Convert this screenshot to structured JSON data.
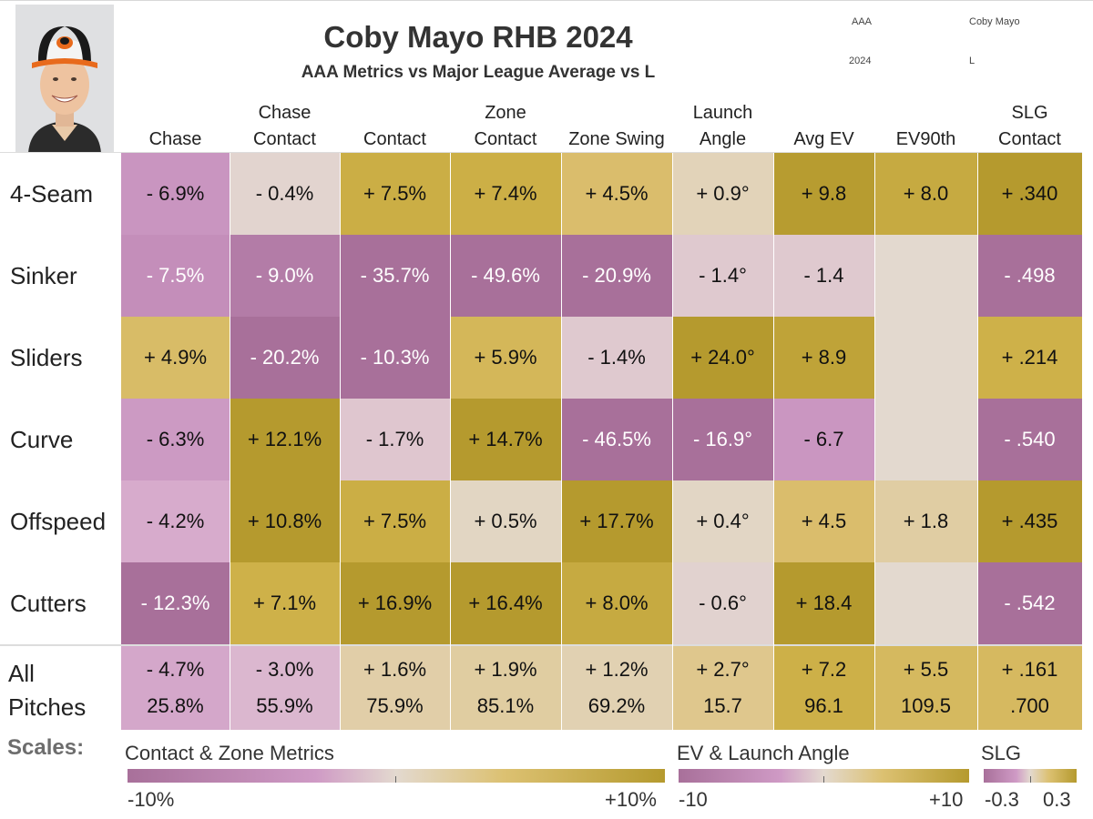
{
  "header": {
    "title": "Coby Mayo RHB 2024",
    "subtitle": "AAA Metrics vs Major League Average vs L",
    "meta": {
      "level": "AAA",
      "player": "Coby Mayo",
      "year": "2024",
      "hand": "L"
    }
  },
  "chart_data": {
    "type": "table",
    "title": "Coby Mayo RHB 2024",
    "subtitle": "AAA Metrics vs Major League Average vs L",
    "columns": [
      {
        "lines": [
          "Chase"
        ],
        "scale": "pct"
      },
      {
        "lines": [
          "Chase",
          "Contact"
        ],
        "scale": "pct"
      },
      {
        "lines": [
          "Contact"
        ],
        "scale": "pct"
      },
      {
        "lines": [
          "Zone",
          "Contact"
        ],
        "scale": "pct"
      },
      {
        "lines": [
          "Zone Swing"
        ],
        "scale": "pct"
      },
      {
        "lines": [
          "Launch",
          "Angle"
        ],
        "scale": "ev"
      },
      {
        "lines": [
          "Avg EV"
        ],
        "scale": "ev"
      },
      {
        "lines": [
          "EV90th"
        ],
        "scale": "ev"
      },
      {
        "lines": [
          "SLG",
          "Contact"
        ],
        "scale": "slg"
      }
    ],
    "rows": [
      {
        "label": "4-Seam",
        "cells": [
          {
            "text": "- 6.9%",
            "v": -6.9
          },
          {
            "text": "- 0.4%",
            "v": -0.4
          },
          {
            "text": "+ 7.5%",
            "v": 7.5
          },
          {
            "text": "+ 7.4%",
            "v": 7.4
          },
          {
            "text": "+ 4.5%",
            "v": 4.5
          },
          {
            "text": "+ 0.9°",
            "v": 0.9
          },
          {
            "text": "+ 9.8",
            "v": 9.8
          },
          {
            "text": "+ 8.0",
            "v": 8.0
          },
          {
            "text": "+ .340",
            "v": 0.34
          }
        ]
      },
      {
        "label": "Sinker",
        "cells": [
          {
            "text": "- 7.5%",
            "v": -7.5
          },
          {
            "text": "- 9.0%",
            "v": -9.0
          },
          {
            "text": "- 35.7%",
            "v": -35.7
          },
          {
            "text": "- 49.6%",
            "v": -49.6
          },
          {
            "text": "- 20.9%",
            "v": -20.9
          },
          {
            "text": "- 1.4°",
            "v": -1.4
          },
          {
            "text": "- 1.4",
            "v": -1.4
          },
          {
            "text": "",
            "v": null
          },
          {
            "text": "- .498",
            "v": -0.498
          }
        ]
      },
      {
        "label": "Sliders",
        "cells": [
          {
            "text": "+ 4.9%",
            "v": 4.9
          },
          {
            "text": "- 20.2%",
            "v": -20.2
          },
          {
            "text": "- 10.3%",
            "v": -10.3
          },
          {
            "text": "+ 5.9%",
            "v": 5.9
          },
          {
            "text": "- 1.4%",
            "v": -1.4
          },
          {
            "text": "+ 24.0°",
            "v": 24.0
          },
          {
            "text": "+ 8.9",
            "v": 8.9
          },
          {
            "text": "",
            "v": null
          },
          {
            "text": "+ .214",
            "v": 0.214
          }
        ]
      },
      {
        "label": "Curve",
        "cells": [
          {
            "text": "- 6.3%",
            "v": -6.3
          },
          {
            "text": "+ 12.1%",
            "v": 12.1
          },
          {
            "text": "- 1.7%",
            "v": -1.7
          },
          {
            "text": "+ 14.7%",
            "v": 14.7
          },
          {
            "text": "- 46.5%",
            "v": -46.5
          },
          {
            "text": "- 16.9°",
            "v": -16.9
          },
          {
            "text": "- 6.7",
            "v": -6.7
          },
          {
            "text": "",
            "v": null
          },
          {
            "text": "- .540",
            "v": -0.54
          }
        ]
      },
      {
        "label": "Offspeed",
        "cells": [
          {
            "text": "- 4.2%",
            "v": -4.2
          },
          {
            "text": "+ 10.8%",
            "v": 10.8
          },
          {
            "text": "+ 7.5%",
            "v": 7.5
          },
          {
            "text": "+ 0.5%",
            "v": 0.5
          },
          {
            "text": "+ 17.7%",
            "v": 17.7
          },
          {
            "text": "+ 0.4°",
            "v": 0.4
          },
          {
            "text": "+ 4.5",
            "v": 4.5
          },
          {
            "text": "+ 1.8",
            "v": 1.8
          },
          {
            "text": "+ .435",
            "v": 0.435
          }
        ]
      },
      {
        "label": "Cutters",
        "cells": [
          {
            "text": "- 12.3%",
            "v": -12.3
          },
          {
            "text": "+ 7.1%",
            "v": 7.1
          },
          {
            "text": "+ 16.9%",
            "v": 16.9
          },
          {
            "text": "+ 16.4%",
            "v": 16.4
          },
          {
            "text": "+ 8.0%",
            "v": 8.0
          },
          {
            "text": "- 0.6°",
            "v": -0.6
          },
          {
            "text": "+ 18.4",
            "v": 18.4
          },
          {
            "text": "",
            "v": null
          },
          {
            "text": "- .542",
            "v": -0.542
          }
        ]
      }
    ],
    "all_pitches": {
      "label_lines": [
        "All",
        "Pitches"
      ],
      "cells": [
        {
          "diff": "- 4.7%",
          "value": "25.8%",
          "v": -4.7
        },
        {
          "diff": "- 3.0%",
          "value": "55.9%",
          "v": -3.0
        },
        {
          "diff": "+ 1.6%",
          "value": "75.9%",
          "v": 1.6
        },
        {
          "diff": "+ 1.9%",
          "value": "85.1%",
          "v": 1.9
        },
        {
          "diff": "+ 1.2%",
          "value": "69.2%",
          "v": 1.2
        },
        {
          "diff": "+ 2.7°",
          "value": "15.7",
          "v": 2.7
        },
        {
          "diff": "+ 7.2",
          "value": "96.1",
          "v": 7.2
        },
        {
          "diff": "+ 5.5",
          "value": "109.5",
          "v": 5.5
        },
        {
          "diff": "+ .161",
          "value": ".700",
          "v": 0.161
        }
      ]
    },
    "scales": {
      "pct": {
        "min": -10,
        "max": 10
      },
      "ev": {
        "min": -10,
        "max": 10
      },
      "slg": {
        "min": -0.3,
        "max": 0.3
      }
    }
  },
  "legend": {
    "label": "Scales:",
    "items": [
      {
        "title": "Contact & Zone Metrics",
        "min_label": "-10%",
        "max_label": "+10%"
      },
      {
        "title": "EV & Launch Angle",
        "min_label": "-10",
        "max_label": "+10"
      },
      {
        "title": "SLG",
        "min_label": "-0.3",
        "max_label": "0.3"
      }
    ]
  },
  "colors": {
    "neg_strong": "#a8709a",
    "neg_mid": "#c994c0",
    "neg_light": "#dab1cf",
    "neutral": "#e3d9cf",
    "pos_light": "#dec27a",
    "pos_mid": "#cfb24a",
    "pos_strong": "#b59a2e",
    "empty": "#e3d9cf"
  }
}
